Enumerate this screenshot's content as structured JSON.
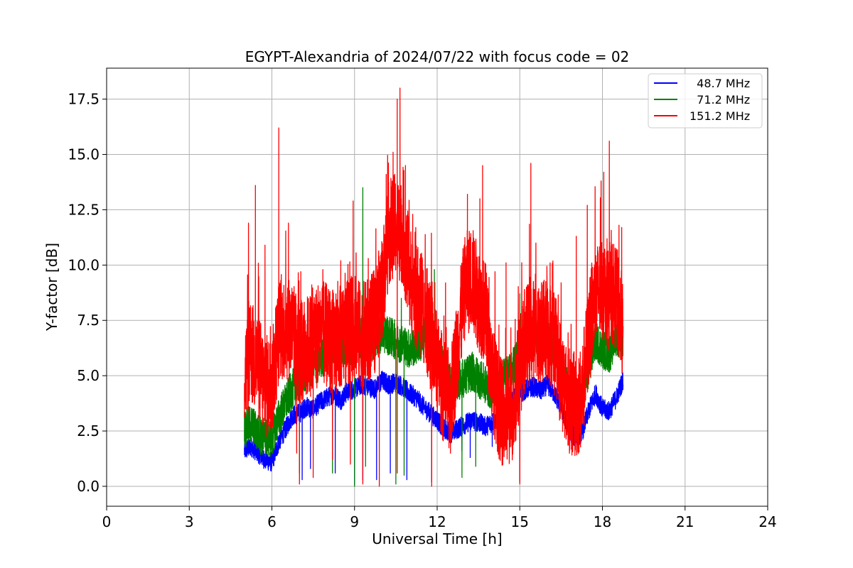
{
  "chart_data": {
    "type": "line",
    "title": "EGYPT-Alexandria of 2024/07/22 with focus code = 02",
    "xlabel": "Universal Time [h]",
    "ylabel": "Y-factor [dB]",
    "xlim": [
      0,
      24
    ],
    "ylim": [
      -0.9,
      18.9
    ],
    "xticks": [
      0,
      3,
      6,
      9,
      12,
      15,
      18,
      21,
      24
    ],
    "xtick_labels": [
      "0",
      "3",
      "6",
      "9",
      "12",
      "15",
      "18",
      "21",
      "24"
    ],
    "yticks": [
      0.0,
      2.5,
      5.0,
      7.5,
      10.0,
      12.5,
      15.0,
      17.5
    ],
    "ytick_labels": [
      "0.0",
      "2.5",
      "5.0",
      "7.5",
      "10.0",
      "12.5",
      "15.0",
      "17.5"
    ],
    "grid": true,
    "legend_position": "top-right",
    "series": [
      {
        "name": "  48.7 MHz",
        "color": "#0000ff",
        "x": [
          5.0,
          5.25,
          5.5,
          5.75,
          6.0,
          6.25,
          6.5,
          6.75,
          7.0,
          7.25,
          7.5,
          7.75,
          8.0,
          8.25,
          8.5,
          8.75,
          9.0,
          9.25,
          9.5,
          9.75,
          10.0,
          10.25,
          10.5,
          10.75,
          11.0,
          11.25,
          11.5,
          11.75,
          12.0,
          12.25,
          12.5,
          12.75,
          13.0,
          13.25,
          13.5,
          13.75,
          14.0,
          14.25,
          14.5,
          14.75,
          15.0,
          15.25,
          15.5,
          15.75,
          16.0,
          16.25,
          16.5,
          16.75,
          17.0,
          17.25,
          17.5,
          17.75,
          18.0,
          18.25,
          18.5,
          18.75
        ],
        "y": [
          1.6,
          1.8,
          1.5,
          1.2,
          1.1,
          2.0,
          2.6,
          3.2,
          3.3,
          3.6,
          3.5,
          3.8,
          4.0,
          4.2,
          3.9,
          4.3,
          4.4,
          4.6,
          4.5,
          4.4,
          4.8,
          4.6,
          4.7,
          4.5,
          4.2,
          4.0,
          3.6,
          3.3,
          3.0,
          2.6,
          2.4,
          2.6,
          2.8,
          3.0,
          2.9,
          2.7,
          2.9,
          3.2,
          3.6,
          3.9,
          4.2,
          4.4,
          4.5,
          4.3,
          4.6,
          4.2,
          3.6,
          2.6,
          2.2,
          2.4,
          3.4,
          4.2,
          3.5,
          3.4,
          4.0,
          4.8
        ],
        "dips": [
          [
            5.3,
            1.5
          ],
          [
            5.9,
            0.9
          ],
          [
            7.1,
            0.3
          ],
          [
            7.4,
            0.8
          ],
          [
            8.3,
            0.6
          ],
          [
            9.0,
            0.1
          ],
          [
            9.3,
            0.3
          ],
          [
            9.8,
            0.3
          ],
          [
            10.3,
            0.6
          ],
          [
            10.9,
            0.3
          ],
          [
            11.8,
            0.2
          ],
          [
            12.9,
            1.6
          ],
          [
            13.2,
            1.3
          ],
          [
            14.0,
            1.8
          ],
          [
            15.0,
            0.2
          ],
          [
            17.0,
            1.7
          ]
        ]
      },
      {
        "name": "  71.2 MHz",
        "color": "#008000",
        "x": [
          5.0,
          5.25,
          5.5,
          5.75,
          6.0,
          6.25,
          6.5,
          6.75,
          7.0,
          7.25,
          7.5,
          7.75,
          8.0,
          8.25,
          8.5,
          8.75,
          9.0,
          9.25,
          9.5,
          9.75,
          10.0,
          10.25,
          10.5,
          10.75,
          11.0,
          11.25,
          11.5,
          11.75,
          12.0,
          12.25,
          12.5,
          12.75,
          13.0,
          13.25,
          13.5,
          13.75,
          14.0,
          14.25,
          14.5,
          14.75,
          15.0,
          15.25,
          15.5,
          15.75,
          16.0,
          16.25,
          16.5,
          16.75,
          17.0,
          17.25,
          17.5,
          17.75,
          18.0,
          18.25,
          18.5,
          18.75
        ],
        "y": [
          2.6,
          2.8,
          2.4,
          2.2,
          2.2,
          3.1,
          3.8,
          4.4,
          4.8,
          5.2,
          5.4,
          5.7,
          6.0,
          6.4,
          6.2,
          6.4,
          6.3,
          6.8,
          6.5,
          6.6,
          7.0,
          6.8,
          6.6,
          6.4,
          6.2,
          6.4,
          6.6,
          6.8,
          6.2,
          5.3,
          4.6,
          4.8,
          4.9,
          5.2,
          4.9,
          4.6,
          4.3,
          4.6,
          5.0,
          5.4,
          6.0,
          6.5,
          6.8,
          6.7,
          6.9,
          6.4,
          5.4,
          4.4,
          3.6,
          3.9,
          5.4,
          6.6,
          6.2,
          6.0,
          6.8,
          6.6
        ],
        "peaks": [
          [
            9.3,
            13.5
          ],
          [
            10.7,
            8.5
          ],
          [
            11.9,
            9.8
          ],
          [
            15.0,
            8.7
          ]
        ],
        "dips": [
          [
            7.0,
            0.6
          ],
          [
            8.2,
            0.6
          ],
          [
            9.0,
            0.0
          ],
          [
            9.4,
            0.9
          ],
          [
            10.5,
            0.1
          ],
          [
            10.8,
            0.5
          ],
          [
            12.9,
            0.4
          ],
          [
            13.4,
            0.9
          ]
        ]
      },
      {
        "name": "151.2 MHz",
        "color": "#ff0000",
        "x": [
          5.0,
          5.25,
          5.5,
          5.75,
          6.0,
          6.25,
          6.5,
          6.75,
          7.0,
          7.25,
          7.5,
          7.75,
          8.0,
          8.25,
          8.5,
          8.75,
          9.0,
          9.25,
          9.5,
          9.75,
          10.0,
          10.25,
          10.5,
          10.75,
          11.0,
          11.25,
          11.5,
          11.75,
          12.0,
          12.25,
          12.5,
          12.75,
          13.0,
          13.25,
          13.5,
          13.75,
          14.0,
          14.25,
          14.5,
          14.75,
          15.0,
          15.25,
          15.5,
          15.75,
          16.0,
          16.25,
          16.5,
          16.75,
          17.0,
          17.25,
          17.5,
          17.75,
          18.0,
          18.25,
          18.5,
          18.75
        ],
        "y": [
          5.0,
          6.0,
          5.5,
          4.5,
          4.5,
          7.0,
          7.2,
          7.0,
          6.0,
          6.2,
          6.6,
          6.9,
          6.8,
          6.5,
          6.7,
          7.0,
          7.2,
          6.8,
          7.0,
          7.5,
          9.0,
          11.5,
          11.8,
          11.5,
          9.5,
          8.5,
          8.0,
          6.8,
          5.5,
          4.2,
          3.8,
          6.5,
          9.0,
          9.5,
          8.5,
          7.8,
          5.0,
          3.6,
          3.0,
          3.5,
          5.5,
          6.8,
          7.0,
          6.8,
          7.2,
          6.5,
          5.0,
          4.0,
          3.5,
          4.0,
          6.8,
          8.5,
          9.0,
          8.5,
          8.6,
          7.0
        ],
        "peaks": [
          [
            5.15,
            11.9
          ],
          [
            5.4,
            13.6
          ],
          [
            5.75,
            10.9
          ],
          [
            6.25,
            16.2
          ],
          [
            6.6,
            11.9
          ],
          [
            7.05,
            9.7
          ],
          [
            7.85,
            9.8
          ],
          [
            8.5,
            10.2
          ],
          [
            8.95,
            12.9
          ],
          [
            9.5,
            10.3
          ],
          [
            10.15,
            14.1
          ],
          [
            10.4,
            15.1
          ],
          [
            10.55,
            17.5
          ],
          [
            10.65,
            18.0
          ],
          [
            10.85,
            14.5
          ],
          [
            11.3,
            10.8
          ],
          [
            11.85,
            7.8
          ],
          [
            13.1,
            13.2
          ],
          [
            13.55,
            13.0
          ],
          [
            13.65,
            14.5
          ],
          [
            14.1,
            9.7
          ],
          [
            14.5,
            10.1
          ],
          [
            15.4,
            14.6
          ],
          [
            16.1,
            10.1
          ],
          [
            16.5,
            9.2
          ],
          [
            17.05,
            11.3
          ],
          [
            17.45,
            12.7
          ],
          [
            17.95,
            13.8
          ],
          [
            18.05,
            14.2
          ],
          [
            18.25,
            15.6
          ],
          [
            18.6,
            11.8
          ],
          [
            18.7,
            11.7
          ]
        ],
        "dips": [
          [
            6.9,
            1.5
          ],
          [
            7.0,
            0.1
          ],
          [
            7.5,
            0.4
          ],
          [
            8.2,
            1.2
          ],
          [
            8.85,
            1.0
          ],
          [
            9.3,
            0.1
          ],
          [
            9.9,
            0.0
          ],
          [
            10.55,
            0.6
          ],
          [
            11.8,
            0.0
          ],
          [
            15.0,
            0.1
          ]
        ]
      }
    ]
  }
}
